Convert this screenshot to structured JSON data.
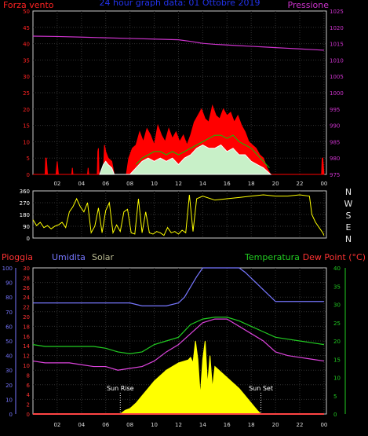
{
  "header": {
    "left_title": "Forza vento",
    "center_title": "24 hour graph data: 01 Ottobre 2019",
    "right_title": "Pressione"
  },
  "direction_labels": [
    "N",
    "W",
    "S",
    "E",
    "N"
  ],
  "bottom_header": {
    "rain": "Pioggia",
    "humidity": "Umidita",
    "solar": "Solar",
    "temperature": "Temperatura",
    "dewpoint": "Dew Point (°C)"
  },
  "annotations": {
    "sunrise": "Sun Rise",
    "sunset": "Sun Set"
  },
  "colors": {
    "wind_gust": "#ff0000",
    "wind_avg": "#ffffff",
    "wind_avg_fill": "#c8f0c8",
    "wind_line": "#00cc00",
    "pressure": "#cc33cc",
    "direction": "#ffff00",
    "humidity": "#7777ff",
    "temperature": "#22cc22",
    "dewpoint": "#dd44dd",
    "solar": "#ffff00",
    "rain": "#ff4444",
    "axis_wind": "#ff2222",
    "axis_pressure": "#cc33cc",
    "axis_humidity": "#7777ff",
    "axis_rain": "#ff3333",
    "axis_temp": "#22cc22"
  },
  "chart_data": [
    {
      "type": "area",
      "panel": "wind-pressure",
      "title": "24 hour graph data: 01 Ottobre 2019",
      "x_ticks": [
        "02",
        "04",
        "06",
        "08",
        "10",
        "12",
        "14",
        "16",
        "18",
        "20",
        "22",
        "00"
      ],
      "x_tick_hours": [
        2,
        4,
        6,
        8,
        10,
        12,
        14,
        16,
        18,
        20,
        22,
        24
      ],
      "xlim": [
        0,
        24.2
      ],
      "left_axis": {
        "label": "Forza vento",
        "ylim": [
          0,
          50
        ],
        "ticks": [
          0,
          5,
          10,
          15,
          20,
          25,
          30,
          35,
          40,
          45,
          50
        ]
      },
      "right_axis": {
        "label": "Pressione",
        "ylim": [
          975,
          1025
        ],
        "ticks": [
          975,
          980,
          985,
          990,
          995,
          1000,
          1005,
          1010,
          1015,
          1020,
          1025
        ]
      },
      "grid": true,
      "series": [
        {
          "name": "Forza vento",
          "role": "gust",
          "x": [
            0,
            0.5,
            1.0,
            1.05,
            1.1,
            1.2,
            1.9,
            2.0,
            2.1,
            2.5,
            3.0,
            3.2,
            3.25,
            3.3,
            3.6,
            4.5,
            4.55,
            4.6,
            5.3,
            5.35,
            5.4,
            5.45,
            5.5,
            5.8,
            5.9,
            6.0,
            6.2,
            6.5,
            6.7,
            6.9,
            7.3,
            7.7,
            7.9,
            8.2,
            8.5,
            8.8,
            9.1,
            9.4,
            9.7,
            10.0,
            10.3,
            10.6,
            10.9,
            11.2,
            11.5,
            11.8,
            12.1,
            12.4,
            12.7,
            13.0,
            13.3,
            13.6,
            13.9,
            14.2,
            14.5,
            14.8,
            15.1,
            15.4,
            15.7,
            16.0,
            16.3,
            16.6,
            16.9,
            17.2,
            17.5,
            17.8,
            18.1,
            18.4,
            18.7,
            19.0,
            19.3,
            19.6,
            19.8,
            20.0,
            21.0,
            22.0,
            23.0,
            23.8,
            23.85,
            23.9,
            24.0
          ],
          "values": [
            0,
            0,
            0,
            5,
            5,
            0,
            0,
            4,
            0,
            0,
            0,
            0,
            2,
            0,
            0,
            0,
            2,
            0,
            0,
            7,
            8,
            0,
            0,
            0,
            9,
            7,
            5,
            4,
            0,
            0,
            0,
            0,
            5,
            8,
            9,
            13,
            10,
            14,
            12,
            9,
            15,
            12,
            10,
            14,
            11,
            13,
            10,
            12,
            9,
            12,
            16,
            18,
            20,
            17,
            16,
            21,
            18,
            17,
            20,
            18,
            19,
            16,
            18,
            15,
            13,
            10,
            9,
            8,
            6,
            5,
            2,
            0,
            0,
            0,
            0,
            0,
            0,
            0,
            5,
            5,
            0
          ]
        },
        {
          "name": "Vento medio",
          "role": "avg",
          "x": [
            5.5,
            5.8,
            6.0,
            6.2,
            6.5,
            6.7,
            8.0,
            8.5,
            9.0,
            9.5,
            10.0,
            10.5,
            11.0,
            11.5,
            12.0,
            12.5,
            13.0,
            13.5,
            14.0,
            14.5,
            15.0,
            15.5,
            16.0,
            16.5,
            17.0,
            17.5,
            18.0,
            18.5,
            19.0,
            19.3,
            19.6
          ],
          "values": [
            0,
            3,
            4,
            3,
            2,
            0,
            0,
            2,
            4,
            5,
            4,
            5,
            4,
            5,
            3,
            5,
            6,
            8,
            9,
            8,
            8,
            9,
            7,
            8,
            6,
            6,
            4,
            3,
            2,
            1,
            0
          ]
        },
        {
          "name": "Vento medio (media mobile)",
          "role": "avg_line",
          "x": [
            8.5,
            9.0,
            9.5,
            10.0,
            10.5,
            11.0,
            11.5,
            12.0,
            12.5,
            13.0,
            13.5,
            14.0,
            14.5,
            15.0,
            15.5,
            16.0,
            16.5,
            17.0,
            17.5,
            18.0,
            18.5,
            19.0,
            19.5
          ],
          "values": [
            3,
            5,
            6,
            7,
            7,
            6,
            7,
            6,
            7,
            8,
            9,
            10,
            11,
            12,
            12,
            11,
            12,
            10,
            9,
            8,
            6,
            4,
            2
          ]
        },
        {
          "name": "Pressione",
          "role": "pressure",
          "x": [
            0,
            2,
            4,
            6,
            8,
            10,
            12,
            13,
            14,
            15,
            16,
            17,
            18,
            19,
            20,
            21,
            22,
            23,
            24
          ],
          "values": [
            1017.3,
            1017.2,
            1017.0,
            1016.8,
            1016.6,
            1016.4,
            1016.2,
            1015.7,
            1015.1,
            1014.8,
            1014.6,
            1014.4,
            1014.2,
            1014.0,
            1013.8,
            1013.6,
            1013.4,
            1013.2,
            1013.0
          ]
        }
      ]
    },
    {
      "type": "line",
      "panel": "wind-direction",
      "ylim": [
        0,
        360
      ],
      "y_ticks": [
        0,
        90,
        180,
        270,
        360
      ],
      "x_tick_hours": [
        2,
        4,
        6,
        8,
        10,
        12,
        14,
        16,
        18,
        20,
        22,
        24
      ],
      "xlim": [
        0,
        24.2
      ],
      "grid": true,
      "series": [
        {
          "name": "Direzione",
          "x": [
            0,
            0.3,
            0.6,
            0.9,
            1.2,
            1.5,
            1.8,
            2.1,
            2.4,
            2.7,
            3.0,
            3.3,
            3.6,
            3.9,
            4.2,
            4.5,
            4.8,
            5.1,
            5.4,
            5.7,
            6.0,
            6.3,
            6.6,
            6.9,
            7.2,
            7.5,
            7.8,
            8.1,
            8.4,
            8.7,
            9.0,
            9.3,
            9.6,
            9.9,
            10.2,
            10.5,
            10.8,
            11.1,
            11.4,
            11.7,
            12.0,
            12.3,
            12.6,
            12.9,
            13.2,
            13.5,
            14.0,
            15.0,
            16.0,
            17.0,
            18.0,
            19.0,
            20.0,
            21.0,
            22.0,
            22.8,
            23.0,
            23.3,
            23.6,
            23.9,
            24.0
          ],
          "values": [
            140,
            95,
            120,
            80,
            95,
            70,
            90,
            100,
            120,
            80,
            200,
            240,
            300,
            240,
            200,
            270,
            40,
            90,
            230,
            40,
            210,
            270,
            40,
            100,
            50,
            200,
            220,
            40,
            30,
            300,
            40,
            200,
            40,
            30,
            50,
            40,
            20,
            80,
            40,
            50,
            30,
            60,
            40,
            330,
            50,
            300,
            320,
            290,
            300,
            310,
            320,
            330,
            320,
            320,
            330,
            320,
            180,
            120,
            80,
            40,
            20
          ]
        }
      ]
    },
    {
      "type": "area",
      "panel": "temperature-humidity-solar",
      "x_ticks": [
        "02",
        "04",
        "06",
        "08",
        "10",
        "12",
        "14",
        "16",
        "18",
        "20",
        "22",
        "00"
      ],
      "x_tick_hours": [
        2,
        4,
        6,
        8,
        10,
        12,
        14,
        16,
        18,
        20,
        22,
        24
      ],
      "xlim": [
        0,
        24.2
      ],
      "axes": {
        "humidity": {
          "label": "Umidita",
          "ylim": [
            0,
            100
          ],
          "ticks": [
            0,
            10,
            20,
            30,
            40,
            50,
            60,
            70,
            80,
            90,
            100
          ]
        },
        "rain": {
          "label": "Pioggia",
          "ylim": [
            0,
            30
          ],
          "ticks": [
            0,
            2,
            4,
            6,
            8,
            10,
            12,
            14,
            16,
            18,
            20,
            22,
            24,
            26,
            28,
            30
          ]
        },
        "temperature": {
          "label": "Temperatura",
          "ylim": [
            0,
            40
          ],
          "ticks": [
            0,
            5,
            10,
            15,
            20,
            25,
            30,
            35,
            40
          ]
        }
      },
      "grid": true,
      "series": [
        {
          "name": "Umidita",
          "axis": "humidity",
          "x": [
            0,
            2,
            4,
            6,
            8,
            9,
            10,
            11,
            12,
            12.5,
            13,
            13.5,
            14.0,
            15.0,
            16.0,
            17.0,
            17.5,
            18.0,
            18.5,
            19.0,
            19.5,
            20.0,
            22.0,
            24.0
          ],
          "values": [
            76,
            76,
            76,
            76,
            76,
            74,
            74,
            74,
            76,
            80,
            87,
            94,
            100,
            100,
            100,
            100,
            97,
            93,
            89,
            85,
            81,
            77,
            77,
            77
          ]
        },
        {
          "name": "Temperatura",
          "axis": "temperature",
          "x": [
            0,
            1,
            2,
            3,
            4,
            5,
            6,
            7,
            8,
            9,
            10,
            11,
            12,
            13,
            14,
            15,
            16,
            17,
            18,
            19,
            20,
            21,
            22,
            23,
            24
          ],
          "values": [
            19,
            18.5,
            18.5,
            18.5,
            18.5,
            18.5,
            18,
            17,
            16.5,
            17,
            19,
            20,
            21,
            24.5,
            26,
            26.5,
            26.5,
            25.5,
            24,
            22.5,
            21,
            20.5,
            20,
            19.5,
            19
          ]
        },
        {
          "name": "Dew Point",
          "axis": "temperature",
          "x": [
            0,
            1,
            2,
            3,
            4,
            5,
            6,
            7,
            8,
            9,
            10,
            11,
            12,
            13,
            14,
            15,
            16,
            17,
            18,
            19,
            20,
            21,
            22,
            23,
            24
          ],
          "values": [
            14.5,
            14,
            14,
            14,
            13.5,
            13,
            13,
            12,
            12.5,
            13,
            14.5,
            17,
            19,
            22,
            25,
            26,
            26,
            24,
            22,
            20,
            17,
            16,
            15.5,
            15,
            14.5
          ]
        },
        {
          "name": "Solar",
          "axis": "temperature",
          "x": [
            7.2,
            7.6,
            8.0,
            8.5,
            9.0,
            9.5,
            10.0,
            10.5,
            11.0,
            11.5,
            12.0,
            12.5,
            12.8,
            13.0,
            13.2,
            13.4,
            13.6,
            13.8,
            14.0,
            14.2,
            14.4,
            14.6,
            14.8,
            15.0,
            15.5,
            16.0,
            16.5,
            17.0,
            17.5,
            18.0,
            18.5,
            18.8
          ],
          "values": [
            0,
            1,
            1.5,
            3,
            5,
            7,
            9,
            10.5,
            12,
            13,
            14,
            14.5,
            14.8,
            15.5,
            14,
            20,
            15,
            5,
            15,
            20,
            8,
            16,
            7,
            13,
            11.5,
            10,
            8.5,
            7,
            5,
            3,
            1,
            0
          ]
        },
        {
          "name": "Pioggia",
          "axis": "rain",
          "x": [
            0,
            24
          ],
          "values": [
            0,
            0
          ]
        }
      ],
      "annotations": [
        {
          "text": "Sun Rise",
          "x": 7.2
        },
        {
          "text": "Sun Set",
          "x": 18.8
        }
      ]
    }
  ]
}
